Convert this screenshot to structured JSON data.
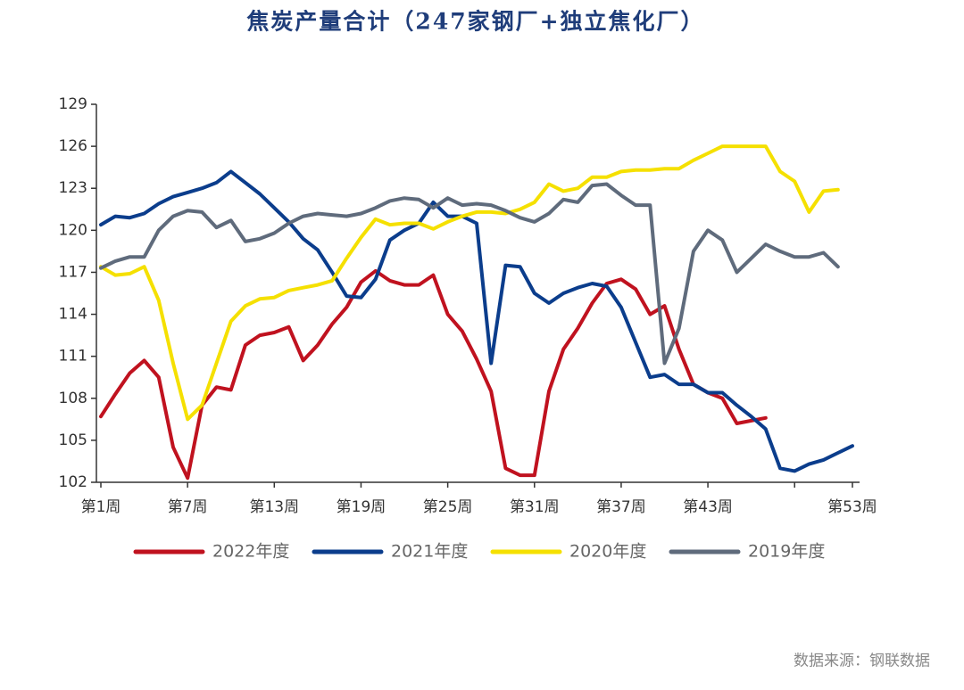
{
  "chart_data": {
    "type": "line",
    "title": "焦炭产量合计（247家钢厂+独立焦化厂）",
    "source": "数据来源：钢联数据",
    "x": [
      1,
      2,
      3,
      4,
      5,
      6,
      7,
      8,
      9,
      10,
      11,
      12,
      13,
      14,
      15,
      16,
      17,
      18,
      19,
      20,
      21,
      22,
      23,
      24,
      25,
      26,
      27,
      28,
      29,
      30,
      31,
      32,
      33,
      34,
      35,
      36,
      37,
      38,
      39,
      40,
      41,
      42,
      43,
      44,
      45,
      46,
      47,
      48,
      49,
      50,
      51,
      52,
      53
    ],
    "xlim": [
      1,
      53
    ],
    "xticks": [
      {
        "value": 1,
        "label": "第1周"
      },
      {
        "value": 7,
        "label": "第7周"
      },
      {
        "value": 13,
        "label": "第13周"
      },
      {
        "value": 19,
        "label": "第19周"
      },
      {
        "value": 25,
        "label": "第25周"
      },
      {
        "value": 31,
        "label": "第31周"
      },
      {
        "value": 37,
        "label": "第37周"
      },
      {
        "value": 43,
        "label": "第43周"
      },
      {
        "value": 49,
        "label": null
      },
      {
        "value": 53,
        "label": "第53周"
      }
    ],
    "ylim": [
      102,
      129
    ],
    "yticks": [
      102,
      105,
      108,
      111,
      114,
      117,
      120,
      123,
      126,
      129
    ],
    "series": [
      {
        "name": "2022年度",
        "color": "#c0121f",
        "values": [
          106.7,
          108.3,
          109.8,
          110.7,
          109.5,
          104.5,
          102.3,
          107.5,
          108.8,
          108.6,
          111.8,
          112.5,
          112.7,
          113.1,
          110.7,
          111.8,
          113.3,
          114.5,
          116.3,
          117.1,
          116.4,
          116.1,
          116.1,
          116.8,
          114.0,
          112.8,
          110.8,
          108.5,
          103.0,
          102.5,
          102.5,
          108.5,
          111.5,
          113.0,
          114.8,
          116.2,
          116.5,
          115.8,
          114.0,
          114.6,
          111.5,
          109.0,
          108.4,
          108.0,
          106.2,
          106.4,
          106.6,
          null,
          null,
          null,
          null,
          null,
          null
        ]
      },
      {
        "name": "2021年度",
        "color": "#0b3d8c",
        "values": [
          120.4,
          121.0,
          120.9,
          121.2,
          121.9,
          122.4,
          122.7,
          123.0,
          123.4,
          124.2,
          123.4,
          122.6,
          121.6,
          120.6,
          119.4,
          118.6,
          117.0,
          115.3,
          115.2,
          116.5,
          119.3,
          120.0,
          120.5,
          122.0,
          121.0,
          121.0,
          120.5,
          110.5,
          117.5,
          117.4,
          115.5,
          114.8,
          115.5,
          115.9,
          116.2,
          116.0,
          114.5,
          112.0,
          109.5,
          109.7,
          109.0,
          109.0,
          108.4,
          108.4,
          107.5,
          106.7,
          105.8,
          103.0,
          102.8,
          103.3,
          103.6,
          104.1,
          104.6
        ]
      },
      {
        "name": "2020年度",
        "color": "#f5e000",
        "values": [
          117.4,
          116.8,
          116.9,
          117.4,
          115.0,
          110.5,
          106.5,
          107.5,
          110.5,
          113.5,
          114.6,
          115.1,
          115.2,
          115.7,
          115.9,
          116.1,
          116.4,
          118.0,
          119.5,
          120.8,
          120.4,
          120.5,
          120.5,
          120.1,
          120.6,
          121.0,
          121.3,
          121.3,
          121.2,
          121.5,
          122.0,
          123.3,
          122.8,
          123.0,
          123.8,
          123.8,
          124.2,
          124.3,
          124.3,
          124.4,
          124.4,
          125.0,
          125.5,
          126.0,
          126.0,
          126.0,
          126.0,
          124.2,
          123.5,
          121.3,
          122.8,
          122.9,
          null
        ]
      },
      {
        "name": "2019年度",
        "color": "#5f6b7c",
        "values": [
          117.3,
          117.8,
          118.1,
          118.1,
          120.0,
          121.0,
          121.4,
          121.3,
          120.2,
          120.7,
          119.2,
          119.4,
          119.8,
          120.5,
          121.0,
          121.2,
          121.1,
          121.0,
          121.2,
          121.6,
          122.1,
          122.3,
          122.2,
          121.6,
          122.3,
          121.8,
          121.9,
          121.8,
          121.4,
          120.9,
          120.6,
          121.2,
          122.2,
          122.0,
          123.2,
          123.3,
          122.5,
          121.8,
          121.8,
          110.5,
          113.0,
          118.5,
          120.0,
          119.3,
          117.0,
          118.0,
          119.0,
          118.5,
          118.1,
          118.1,
          118.4,
          117.4,
          null
        ]
      }
    ]
  }
}
